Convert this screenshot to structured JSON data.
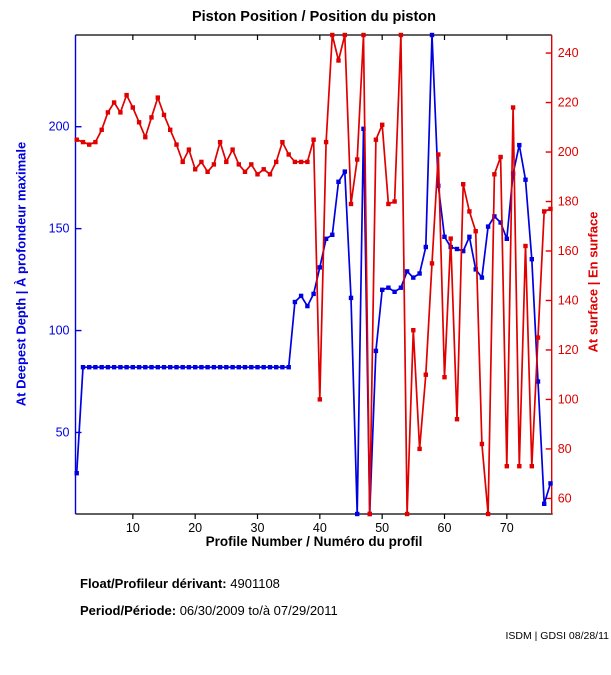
{
  "figure": {
    "title": "Piston Position / Position du piston",
    "xlabel": "Profile Number / Numéro du profil",
    "ylabel_left": "At Deepest Depth | À profondeur maximale",
    "ylabel_right": "At surface | En surface",
    "footer": {
      "float_label": "Float/Profileur dérivant:",
      "float_value": "4901108",
      "period_label": "Period/Période:",
      "period_value": "06/30/2009  to/à  07/29/2011",
      "credit": "ISDM | GDSI 08/28/11"
    },
    "colors": {
      "left_axis": "#0000e0",
      "right_axis": "#e00000",
      "frame": "#000000",
      "background": "#ffffff"
    }
  },
  "chart_data": {
    "type": "line",
    "title": "Piston Position / Position du piston",
    "xlabel": "Profile Number / Numéro du profil",
    "ylabel_left": "At Deepest Depth | À profondeur maximale",
    "ylabel_right": "At surface | En surface",
    "grid": false,
    "legend": "none",
    "marker": "square",
    "xlim": [
      0.8,
      77.2
    ],
    "ylim_left": [
      10,
      245
    ],
    "ylim_right": [
      53.7,
      247.3
    ],
    "x_ticks": [
      10,
      20,
      30,
      40,
      50,
      60,
      70
    ],
    "left_ticks": [
      50,
      100,
      150,
      200
    ],
    "right_ticks": [
      60,
      80,
      100,
      120,
      140,
      160,
      180,
      200,
      220,
      240
    ],
    "x": [
      1,
      2,
      3,
      4,
      5,
      6,
      7,
      8,
      9,
      10,
      11,
      12,
      13,
      14,
      15,
      16,
      17,
      18,
      19,
      20,
      21,
      22,
      23,
      24,
      25,
      26,
      27,
      28,
      29,
      30,
      31,
      32,
      33,
      34,
      35,
      36,
      37,
      38,
      39,
      40,
      41,
      42,
      43,
      44,
      45,
      46,
      47,
      48,
      49,
      50,
      51,
      52,
      53,
      54,
      55,
      56,
      57,
      58,
      59,
      60,
      61,
      62,
      63,
      64,
      65,
      66,
      67,
      68,
      69,
      70,
      71,
      72,
      73,
      74,
      75,
      76,
      77
    ],
    "series": [
      {
        "name": "At Deepest Depth | À profondeur maximale",
        "axis": "left",
        "color": "#0000e0",
        "values": [
          30,
          82,
          82,
          82,
          82,
          82,
          82,
          82,
          82,
          82,
          82,
          82,
          82,
          82,
          82,
          82,
          82,
          82,
          82,
          82,
          82,
          82,
          82,
          82,
          82,
          82,
          82,
          82,
          82,
          82,
          82,
          82,
          82,
          82,
          82,
          114,
          117,
          112,
          118,
          131,
          145,
          147,
          173,
          178,
          116,
          10,
          199,
          10,
          90,
          120,
          121,
          119,
          121,
          129,
          126,
          128,
          141,
          245,
          171,
          146,
          141,
          140,
          139,
          146,
          130,
          126,
          151,
          156,
          153,
          145,
          177,
          191,
          174,
          135,
          75,
          15,
          25
        ]
      },
      {
        "name": "At surface | En surface",
        "axis": "right",
        "color": "#e00000",
        "values": [
          205,
          204,
          203,
          204,
          209,
          216,
          220,
          216,
          223,
          218,
          212,
          206,
          214,
          222,
          215,
          209,
          203,
          196,
          201,
          193,
          196,
          192,
          195,
          204,
          196,
          201,
          195,
          192,
          195,
          191,
          193,
          191,
          196,
          204,
          199,
          196,
          196,
          196,
          205,
          100,
          204,
          247.3,
          237,
          247.3,
          179,
          197,
          247.3,
          53.7,
          205,
          211,
          179,
          180,
          247.3,
          53.7,
          128,
          80,
          110,
          155,
          199,
          109,
          165,
          92,
          187,
          176,
          168,
          82,
          53.7,
          191,
          198,
          73,
          218,
          73,
          162,
          73,
          125,
          176,
          177
        ]
      }
    ]
  }
}
